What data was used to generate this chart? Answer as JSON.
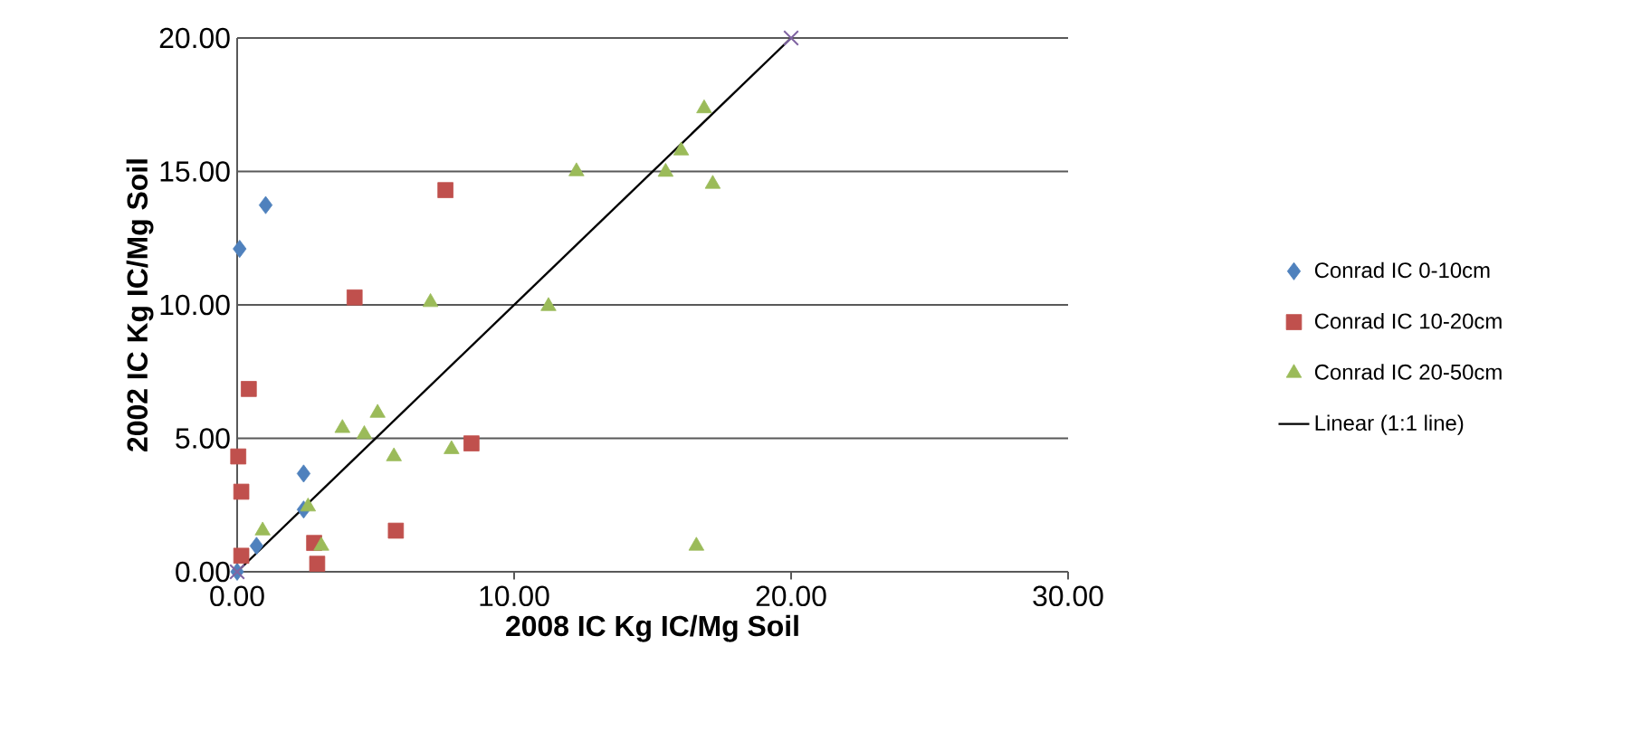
{
  "chart_data": {
    "type": "scatter",
    "xlabel": "2008 IC Kg IC/Mg Soil",
    "ylabel": "2002 IC Kg IC/Mg Soil",
    "xlim": [
      0,
      30
    ],
    "xticks": [
      {
        "value": 0,
        "label": "0.00"
      },
      {
        "value": 10,
        "label": "10.00"
      },
      {
        "value": 20,
        "label": "20.00"
      },
      {
        "value": 30,
        "label": "30.00"
      }
    ],
    "ylim": [
      0,
      20
    ],
    "yticks": [
      {
        "value": 0,
        "label": "0.00"
      },
      {
        "value": 5,
        "label": "5.00"
      },
      {
        "value": 10,
        "label": "10.00"
      },
      {
        "value": 15,
        "label": "15.00"
      },
      {
        "value": 20,
        "label": "20.00"
      }
    ],
    "grid": "y",
    "legend": "right",
    "series": [
      {
        "name": "Conrad IC 0-10cm",
        "color": "#4f81bd",
        "marker": "diamond",
        "x": [
          0.09,
          1.03,
          2.4,
          2.4,
          0.7,
          0
        ],
        "values": [
          12.1,
          13.74,
          3.68,
          2.33,
          0.97,
          0
        ]
      },
      {
        "name": "Conrad IC 10-20cm",
        "color": "#c0504d",
        "marker": "square",
        "x": [
          7.52,
          4.24,
          0.42,
          0.04,
          0.15,
          8.46,
          5.73,
          2.78,
          2.89,
          0.15
        ],
        "values": [
          14.3,
          10.28,
          6.85,
          4.32,
          3.0,
          4.81,
          1.54,
          1.08,
          0.3,
          0.6
        ]
      },
      {
        "name": "Conrad IC 20-50cm",
        "color": "#9bbb59",
        "marker": "triangle",
        "x": [
          12.25,
          6.98,
          11.24,
          3.8,
          5.07,
          4.59,
          5.66,
          7.74,
          2.56,
          0.92,
          3.04,
          16.86,
          16.03,
          15.47,
          17.17,
          16.58
        ],
        "values": [
          15.0,
          10.1,
          9.95,
          5.38,
          5.95,
          5.15,
          4.32,
          4.59,
          2.44,
          1.54,
          0.97,
          17.36,
          15.78,
          14.98,
          14.53,
          0.97
        ]
      },
      {
        "color": "#8064a2",
        "marker": "cross",
        "x": [
          0,
          20
        ],
        "values": [
          0,
          20
        ]
      },
      {
        "name": "Linear (1:1 line)",
        "type": "line",
        "color": "#000000",
        "marker": "none",
        "x": [
          0,
          20
        ],
        "values": [
          0,
          20
        ]
      }
    ]
  }
}
